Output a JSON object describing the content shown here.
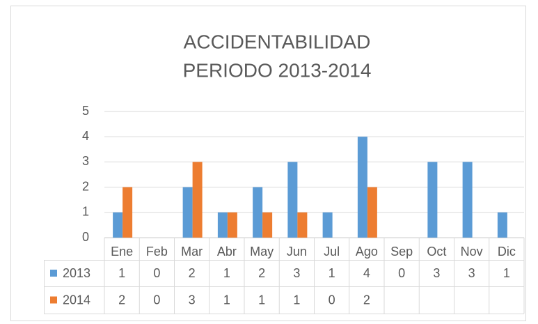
{
  "chart_data": {
    "type": "bar",
    "title": [
      "ACCIDENTABILIDAD",
      "PERIODO 2013-2014"
    ],
    "categories": [
      "Ene",
      "Feb",
      "Mar",
      "Abr",
      "May",
      "Jun",
      "Jul",
      "Ago",
      "Sep",
      "Oct",
      "Nov",
      "Dic"
    ],
    "series": [
      {
        "name": "2013",
        "color": "#5b9bd5",
        "values": [
          1,
          0,
          2,
          1,
          2,
          3,
          1,
          4,
          0,
          3,
          3,
          1
        ]
      },
      {
        "name": "2014",
        "color": "#ed7d31",
        "values": [
          2,
          0,
          3,
          1,
          1,
          1,
          0,
          2,
          null,
          null,
          null,
          null
        ]
      }
    ],
    "ylim": [
      0,
      5
    ],
    "yticks": [
      0,
      1,
      2,
      3,
      4,
      5
    ],
    "grid": true,
    "data_table": true
  }
}
